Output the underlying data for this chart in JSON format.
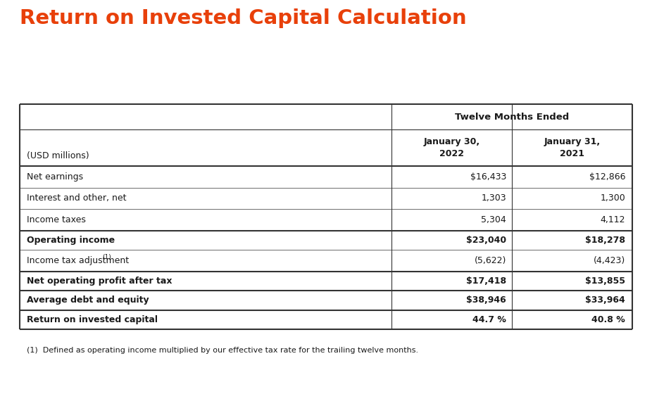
{
  "title": "Return on Invested Capital Calculation",
  "title_color": "#E8400A",
  "title_fontsize": 21,
  "background_color": "#FFFFFF",
  "col_header_row1_text": "Twelve Months Ended",
  "col_header_row2": [
    "(USD millions)",
    "January 30,\n2022",
    "January 31,\n2021"
  ],
  "rows": [
    {
      "label": "Net earnings",
      "bold": false,
      "val1": "$16,433",
      "val2": "$12,866",
      "thick_top": false,
      "separator": false
    },
    {
      "label": "Interest and other, net",
      "bold": false,
      "val1": "1,303",
      "val2": "1,300",
      "thick_top": false,
      "separator": false
    },
    {
      "label": "Income taxes",
      "bold": false,
      "val1": "5,304",
      "val2": "4,112",
      "thick_top": false,
      "separator": false
    },
    {
      "label": "Operating income",
      "bold": true,
      "val1": "$23,040",
      "val2": "$18,278",
      "thick_top": true,
      "separator": false
    },
    {
      "label": "Income tax adjustment (1)",
      "bold": false,
      "val1": "(5,622)",
      "val2": "(4,423)",
      "thick_top": false,
      "separator": false
    },
    {
      "label": "Net operating profit after tax",
      "bold": true,
      "val1": "$17,418",
      "val2": "$13,855",
      "thick_top": true,
      "separator": false
    },
    {
      "label": "Average debt and equity",
      "bold": true,
      "val1": "$38,946",
      "val2": "$33,964",
      "thick_top": true,
      "separator": false
    },
    {
      "label": "Return on invested capital",
      "bold": true,
      "val1": "44.7 %",
      "val2": "40.8 %",
      "thick_top": true,
      "separator": false
    }
  ],
  "footnote": "(1)  Defined as operating income multiplied by our effective tax rate for the trailing twelve months.",
  "line_color": "#333333",
  "text_color": "#1a1a1a"
}
